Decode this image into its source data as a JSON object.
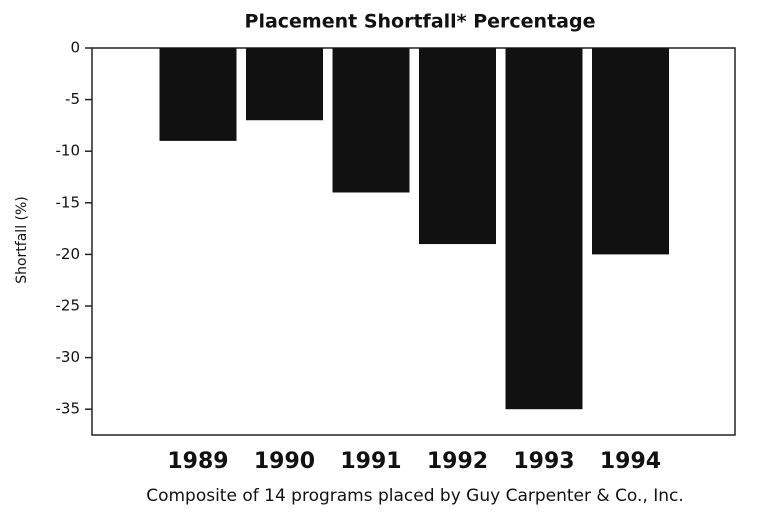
{
  "chart_data": {
    "type": "bar",
    "title": "Placement Shortfall* Percentage",
    "x_label": "Composite of 14 programs placed by Guy Carpenter & Co., Inc.",
    "y_label": "Shortfall (%)",
    "categories": [
      "1989",
      "1990",
      "1991",
      "1992",
      "1993",
      "1994"
    ],
    "values": [
      -9,
      -7,
      -14,
      -19,
      -35,
      -20
    ],
    "color": "#111111",
    "ylim": [
      -37.5,
      0
    ],
    "yticks": [
      0,
      -5,
      -10,
      -15,
      -20,
      -25,
      -30,
      -35
    ],
    "grid": false
  }
}
